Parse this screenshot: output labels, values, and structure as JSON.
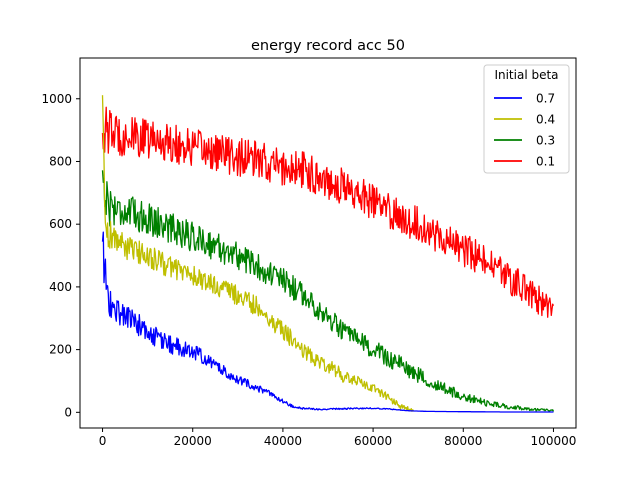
{
  "chart_data": {
    "type": "line",
    "title": "energy record acc 50",
    "xlabel": "",
    "ylabel": "",
    "xlim": [
      -5000,
      105000
    ],
    "ylim": [
      -50,
      1130
    ],
    "x_ticks": [
      0,
      20000,
      40000,
      60000,
      80000,
      100000
    ],
    "x_tick_labels": [
      "0",
      "20000",
      "40000",
      "60000",
      "80000",
      "100000"
    ],
    "y_ticks": [
      0,
      200,
      400,
      600,
      800,
      1000
    ],
    "y_tick_labels": [
      "0",
      "200",
      "400",
      "600",
      "800",
      "1000"
    ],
    "grid": false,
    "legend": {
      "title": "Initial beta",
      "placement": "top-right"
    },
    "series": [
      {
        "name": "0.7",
        "color": "#0000ff",
        "noise": [
          [
            0,
            80
          ],
          [
            2000,
            50
          ],
          [
            10000,
            35
          ],
          [
            20000,
            25
          ],
          [
            30000,
            15
          ],
          [
            40000,
            6
          ],
          [
            45000,
            3
          ],
          [
            60000,
            2
          ],
          [
            70000,
            0
          ],
          [
            100000,
            0
          ]
        ],
        "points": [
          [
            0,
            520
          ],
          [
            500,
            460
          ],
          [
            1000,
            380
          ],
          [
            2000,
            330
          ],
          [
            4000,
            320
          ],
          [
            6000,
            300
          ],
          [
            8000,
            280
          ],
          [
            10000,
            250
          ],
          [
            13000,
            230
          ],
          [
            16000,
            210
          ],
          [
            19000,
            200
          ],
          [
            22000,
            180
          ],
          [
            25000,
            150
          ],
          [
            28000,
            120
          ],
          [
            31000,
            100
          ],
          [
            34000,
            80
          ],
          [
            37000,
            60
          ],
          [
            40000,
            35
          ],
          [
            42000,
            20
          ],
          [
            44000,
            12
          ],
          [
            50000,
            10
          ],
          [
            55000,
            12
          ],
          [
            60000,
            13
          ],
          [
            64000,
            10
          ],
          [
            68000,
            5
          ],
          [
            72000,
            3
          ],
          [
            80000,
            2
          ],
          [
            90000,
            1
          ],
          [
            100000,
            1
          ]
        ]
      },
      {
        "name": "0.4",
        "color": "#bfbf00",
        "noise": [
          [
            0,
            70
          ],
          [
            3000,
            40
          ],
          [
            20000,
            35
          ],
          [
            40000,
            30
          ],
          [
            55000,
            20
          ],
          [
            65000,
            10
          ],
          [
            69000,
            5
          ]
        ],
        "points": [
          [
            0,
            1000
          ],
          [
            400,
            700
          ],
          [
            1000,
            580
          ],
          [
            3000,
            550
          ],
          [
            6000,
            520
          ],
          [
            10000,
            500
          ],
          [
            14000,
            470
          ],
          [
            18000,
            450
          ],
          [
            22000,
            420
          ],
          [
            26000,
            400
          ],
          [
            30000,
            370
          ],
          [
            34000,
            340
          ],
          [
            37000,
            300
          ],
          [
            40000,
            260
          ],
          [
            43000,
            220
          ],
          [
            46000,
            180
          ],
          [
            50000,
            150
          ],
          [
            54000,
            110
          ],
          [
            58000,
            90
          ],
          [
            61000,
            70
          ],
          [
            64000,
            40
          ],
          [
            66000,
            20
          ],
          [
            68000,
            10
          ],
          [
            69000,
            5
          ]
        ]
      },
      {
        "name": "0.3",
        "color": "#008000",
        "noise": [
          [
            0,
            80
          ],
          [
            3000,
            55
          ],
          [
            30000,
            45
          ],
          [
            50000,
            35
          ],
          [
            65000,
            30
          ],
          [
            75000,
            20
          ],
          [
            85000,
            10
          ],
          [
            95000,
            5
          ],
          [
            100000,
            3
          ]
        ],
        "points": [
          [
            0,
            770
          ],
          [
            500,
            700
          ],
          [
            1500,
            660
          ],
          [
            5000,
            640
          ],
          [
            10000,
            620
          ],
          [
            15000,
            590
          ],
          [
            20000,
            560
          ],
          [
            25000,
            530
          ],
          [
            30000,
            500
          ],
          [
            35000,
            460
          ],
          [
            40000,
            420
          ],
          [
            45000,
            370
          ],
          [
            50000,
            300
          ],
          [
            55000,
            240
          ],
          [
            60000,
            200
          ],
          [
            65000,
            160
          ],
          [
            70000,
            120
          ],
          [
            75000,
            80
          ],
          [
            80000,
            50
          ],
          [
            85000,
            30
          ],
          [
            90000,
            18
          ],
          [
            95000,
            10
          ],
          [
            100000,
            5
          ]
        ]
      },
      {
        "name": "0.1",
        "color": "#ff0000",
        "noise": [
          [
            0,
            80
          ],
          [
            5000,
            65
          ],
          [
            50000,
            60
          ],
          [
            80000,
            55
          ],
          [
            100000,
            45
          ]
        ],
        "points": [
          [
            0,
            900
          ],
          [
            5000,
            880
          ],
          [
            10000,
            870
          ],
          [
            15000,
            860
          ],
          [
            20000,
            840
          ],
          [
            25000,
            830
          ],
          [
            30000,
            815
          ],
          [
            35000,
            800
          ],
          [
            40000,
            780
          ],
          [
            45000,
            770
          ],
          [
            50000,
            740
          ],
          [
            55000,
            710
          ],
          [
            60000,
            670
          ],
          [
            65000,
            630
          ],
          [
            70000,
            600
          ],
          [
            75000,
            560
          ],
          [
            80000,
            520
          ],
          [
            85000,
            480
          ],
          [
            90000,
            430
          ],
          [
            95000,
            380
          ],
          [
            100000,
            320
          ]
        ]
      }
    ]
  }
}
